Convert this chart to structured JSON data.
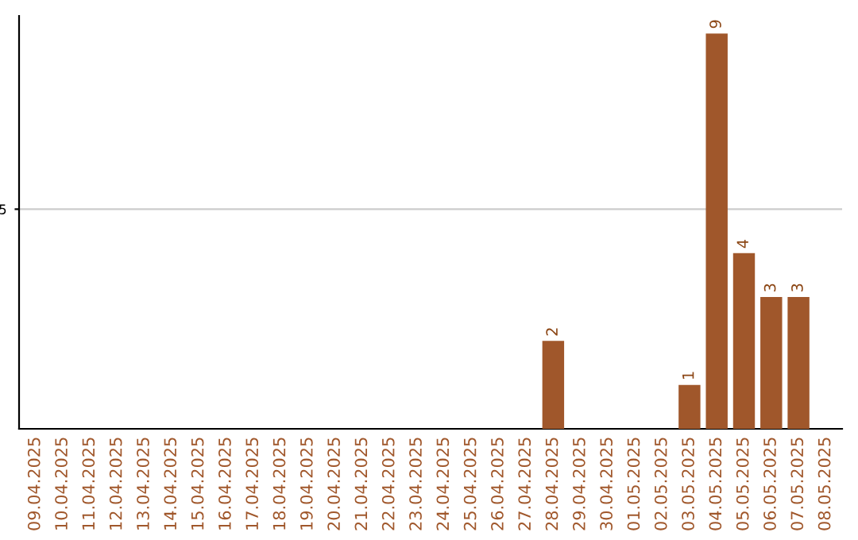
{
  "chart_data": {
    "type": "bar",
    "categories": [
      "09.04.2025",
      "10.04.2025",
      "11.04.2025",
      "12.04.2025",
      "13.04.2025",
      "14.04.2025",
      "15.04.2025",
      "16.04.2025",
      "17.04.2025",
      "18.04.2025",
      "19.04.2025",
      "20.04.2025",
      "21.04.2025",
      "22.04.2025",
      "23.04.2025",
      "24.04.2025",
      "25.04.2025",
      "26.04.2025",
      "27.04.2025",
      "28.04.2025",
      "29.04.2025",
      "30.04.2025",
      "01.05.2025",
      "02.05.2025",
      "03.05.2025",
      "04.05.2025",
      "05.05.2025",
      "06.05.2025",
      "07.05.2025",
      "08.05.2025"
    ],
    "values": [
      null,
      null,
      null,
      null,
      null,
      null,
      null,
      null,
      null,
      null,
      null,
      null,
      null,
      null,
      null,
      null,
      null,
      null,
      null,
      2,
      null,
      null,
      null,
      null,
      1,
      9,
      4,
      3,
      3,
      null
    ],
    "color": "#a0572b",
    "ylim": [
      0,
      9.4
    ],
    "yticks": [
      5
    ],
    "grid": "y",
    "data_labels": true
  }
}
